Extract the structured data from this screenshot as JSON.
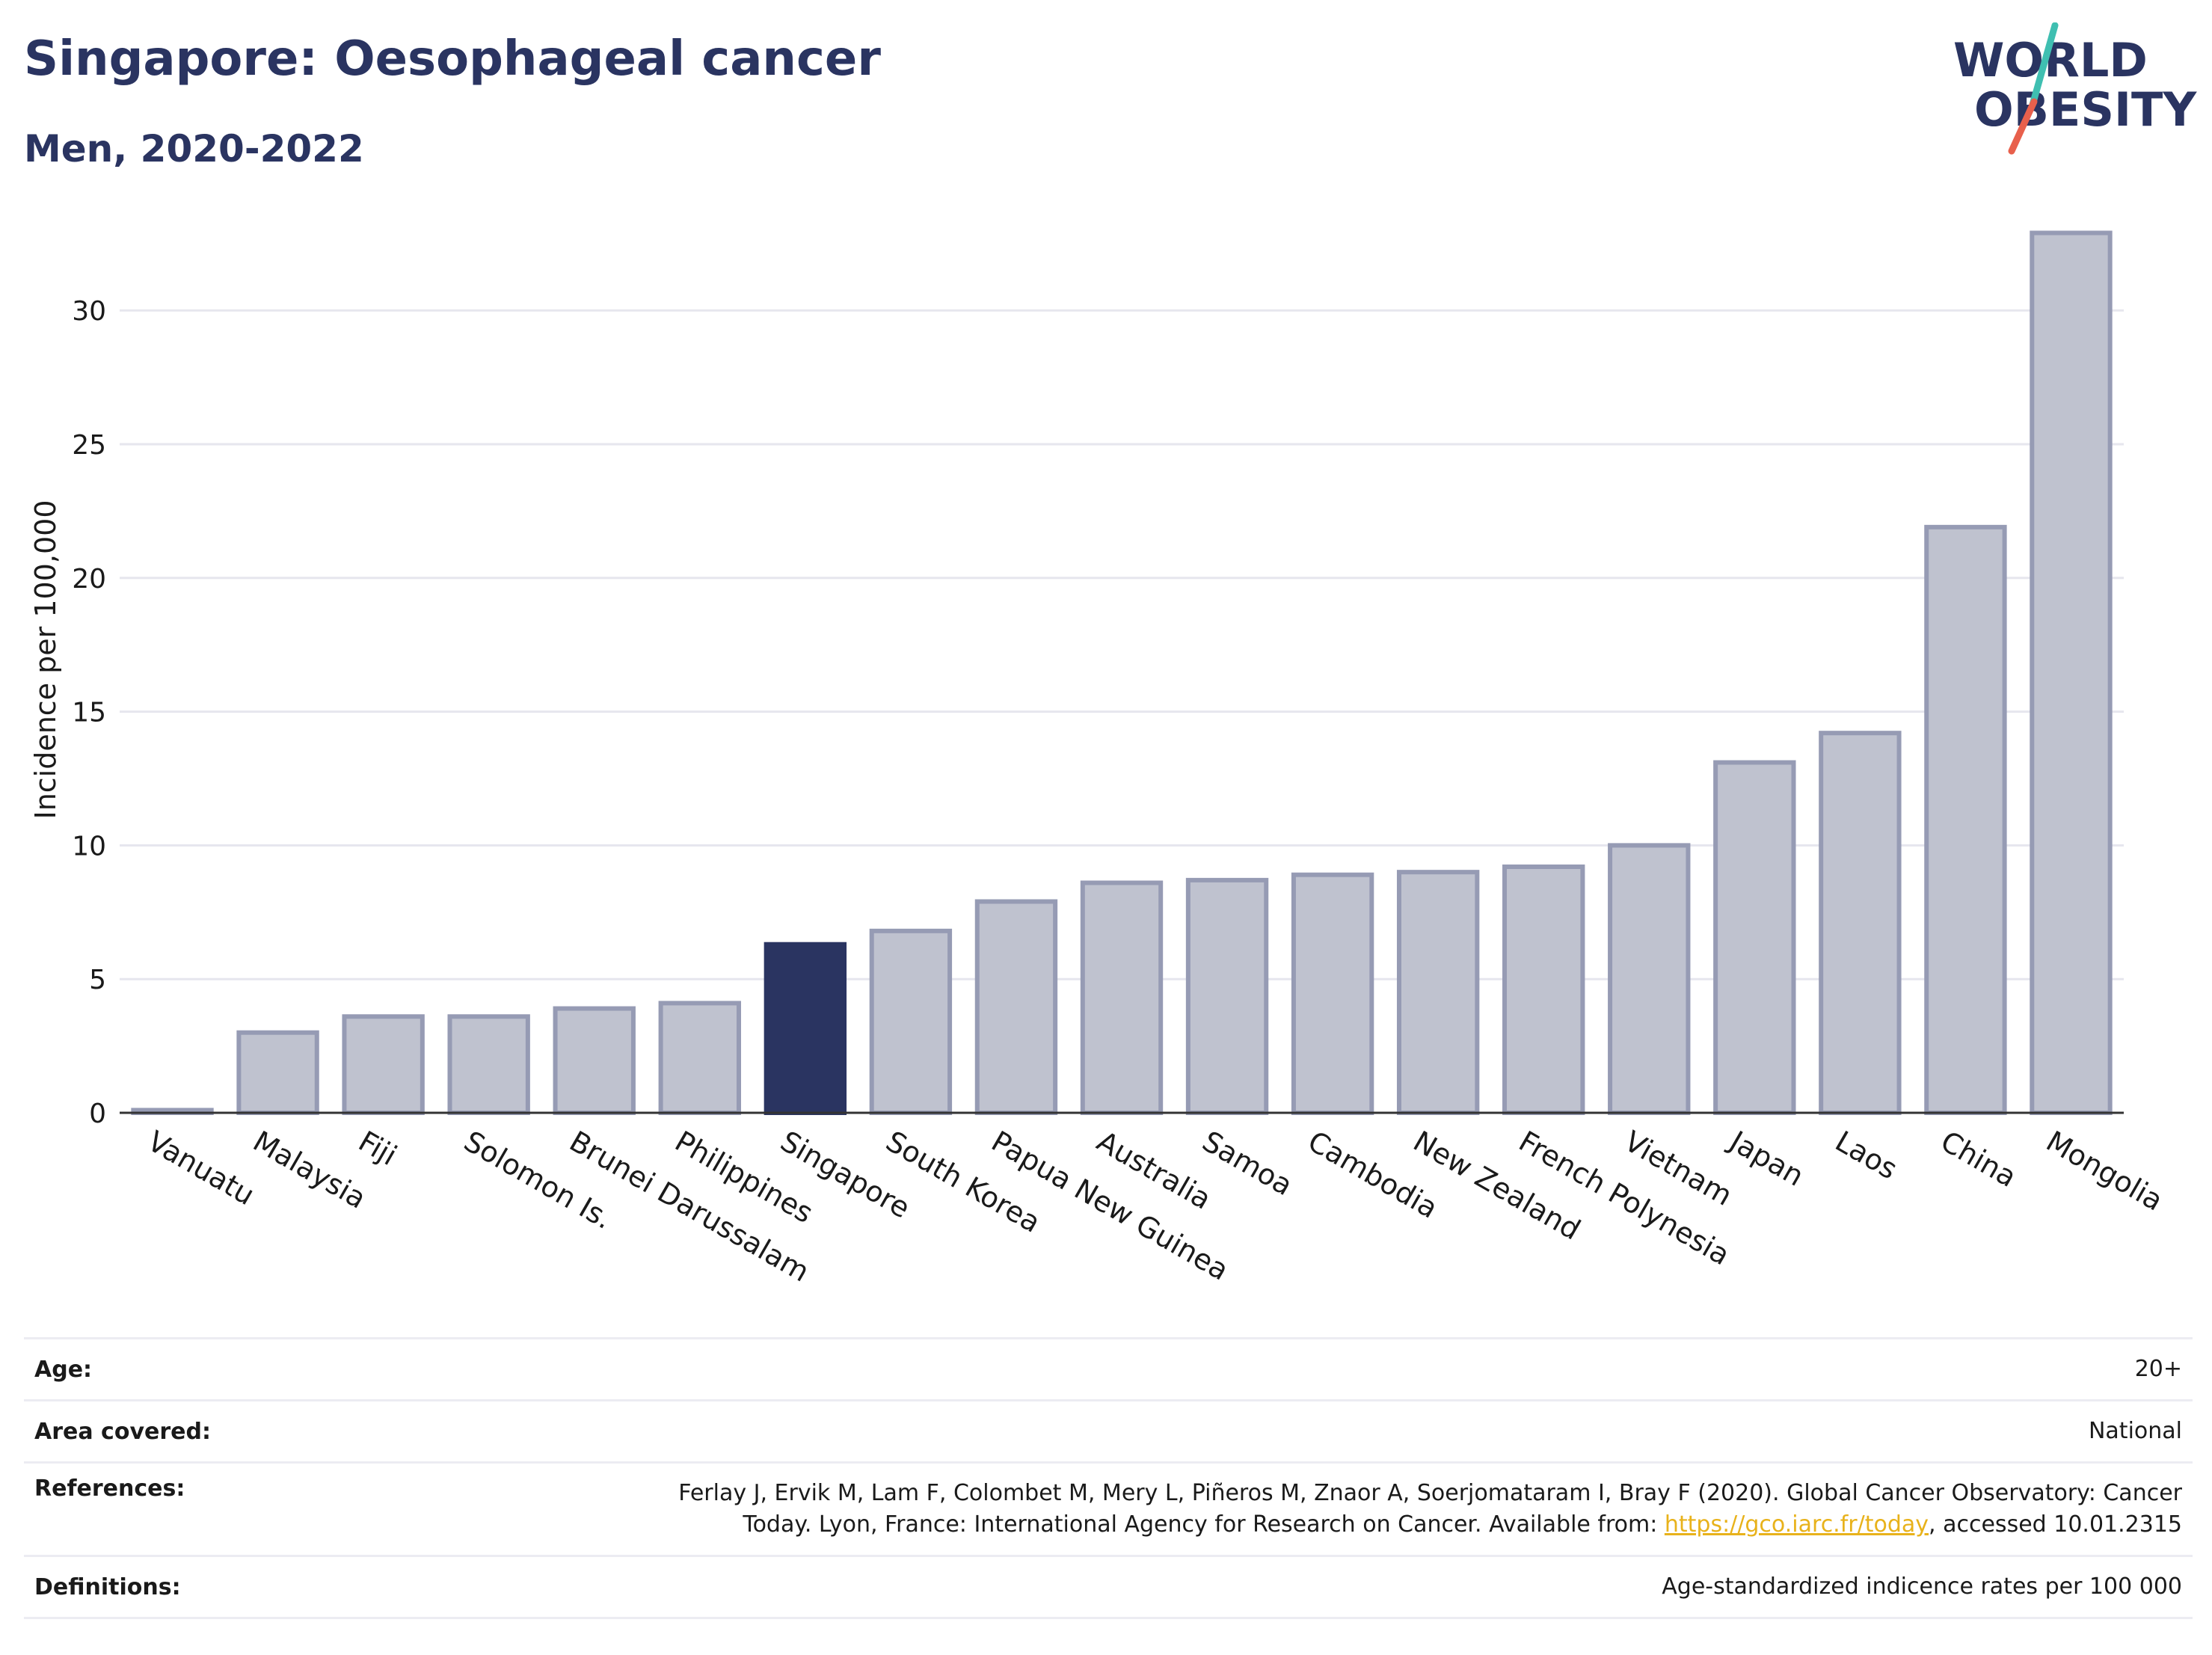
{
  "header": {
    "title": "Singapore: Oesophageal cancer",
    "subtitle": "Men, 2020-2022"
  },
  "logo": {
    "line1": "WORLD",
    "line2": "OBESITY",
    "colors": {
      "text": "#2a3461",
      "slash_top": "#3fbfb1",
      "slash_bottom": "#e8604c"
    }
  },
  "chart_data": {
    "type": "bar",
    "ylabel": "Incidence per 100,000",
    "xlabel": "",
    "ylim": [
      0,
      33.5
    ],
    "yticks": [
      0,
      5,
      10,
      15,
      20,
      25,
      30
    ],
    "grid": true,
    "highlight": "Singapore",
    "colors": {
      "bar": "#bfc2cf",
      "bar_border": "#969bb4",
      "highlight": "#2a3461",
      "grid": "#e6e6ee",
      "axis": "#333333"
    },
    "categories": [
      "Vanuatu",
      "Malaysia",
      "Fiji",
      "Solomon Is.",
      "Brunei Darussalam",
      "Philippines",
      "Singapore",
      "South Korea",
      "Papua New Guinea",
      "Australia",
      "Samoa",
      "Cambodia",
      "New Zealand",
      "French Polynesia",
      "Vietnam",
      "Japan",
      "Laos",
      "China",
      "Mongolia"
    ],
    "values": [
      0.1,
      3.0,
      3.6,
      3.6,
      3.9,
      4.1,
      6.3,
      6.8,
      7.9,
      8.6,
      8.7,
      8.9,
      9.0,
      9.2,
      10.0,
      13.1,
      14.2,
      21.9,
      32.9
    ]
  },
  "meta": {
    "age": {
      "label": "Age:",
      "value": "20+"
    },
    "area": {
      "label": "Area covered:",
      "value": "National"
    },
    "references": {
      "label": "References:",
      "line1": "Ferlay J, Ervik M, Lam F, Colombet M, Mery L, Piñeros M, Znaor A, Soerjomataram I, Bray F (2020). Global Cancer Observatory: Cancer",
      "line2_pre": "Today. Lyon, France: International Agency for Research on Cancer. Available from: ",
      "link": "https://gco.iarc.fr/today",
      "line2_post": ", accessed 10.01.2315"
    },
    "definitions": {
      "label": "Definitions:",
      "value": "Age-standardized indicence rates per 100 000"
    }
  }
}
